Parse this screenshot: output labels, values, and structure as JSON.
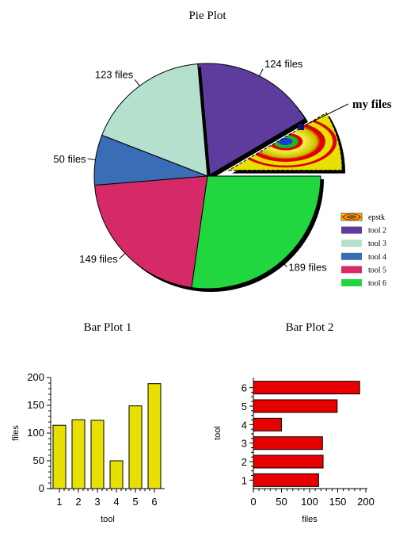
{
  "chart_data": [
    {
      "type": "pie",
      "title": "Pie Plot",
      "slices": [
        {
          "name": "epstk",
          "value": 59,
          "label": "",
          "color": "#e8e000",
          "exploded": true
        },
        {
          "name": "tool 2",
          "value": 124,
          "label": "124 files",
          "color": "#5e3c9e"
        },
        {
          "name": "tool 3",
          "value": 123,
          "label": "123 files",
          "color": "#b5e0cd"
        },
        {
          "name": "tool 4",
          "value": 50,
          "label": "50 files",
          "color": "#3a6db5"
        },
        {
          "name": "tool 5",
          "value": 149,
          "label": "149 files",
          "color": "#d62a68"
        },
        {
          "name": "tool 6",
          "value": 189,
          "label": "189 files",
          "color": "#22d63f"
        }
      ],
      "annotation": "my files",
      "legend_position": "right"
    },
    {
      "type": "bar",
      "title": "Bar Plot 1",
      "categories": [
        "1",
        "2",
        "3",
        "4",
        "5",
        "6"
      ],
      "values": [
        114,
        124,
        123,
        50,
        149,
        189
      ],
      "xlabel": "tool",
      "ylabel": "files",
      "ylim": [
        0,
        200
      ],
      "yticks": [
        "0",
        "50",
        "100",
        "150",
        "200"
      ],
      "bar_color": "#e8e000"
    },
    {
      "type": "bar",
      "orientation": "horizontal",
      "title": "Bar Plot 2",
      "categories": [
        "1",
        "2",
        "3",
        "4",
        "5",
        "6"
      ],
      "values": [
        116,
        124,
        123,
        50,
        149,
        189
      ],
      "xlabel": "files",
      "ylabel": "tool",
      "xlim": [
        0,
        200
      ],
      "xticks": [
        "0",
        "50",
        "100",
        "150",
        "200"
      ],
      "bar_color": "#e80000"
    }
  ]
}
